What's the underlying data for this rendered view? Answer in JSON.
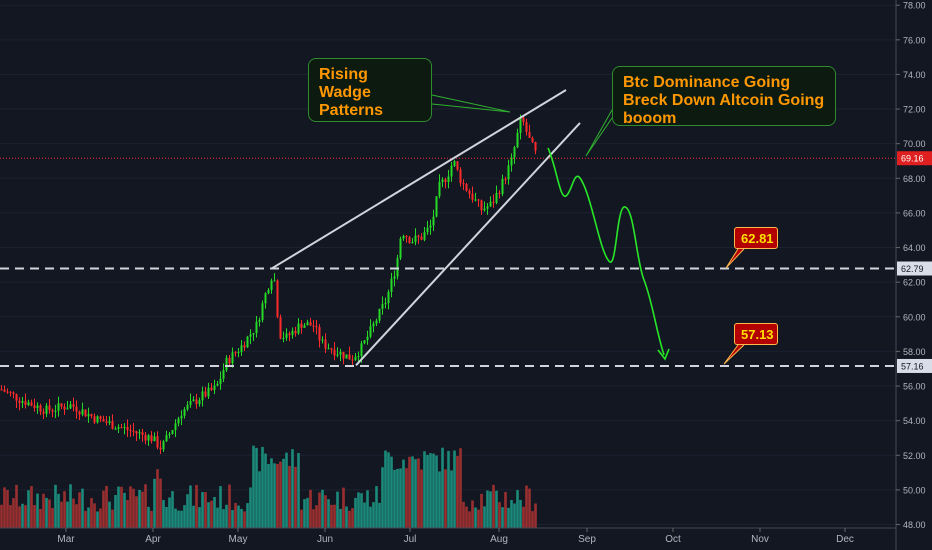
{
  "chart_data": {
    "type": "candlestick",
    "title": "",
    "y_axis": {
      "ticks": [
        "78.00",
        "76.00",
        "74.00",
        "72.00",
        "70.00",
        "68.00",
        "66.00",
        "64.00",
        "62.00",
        "60.00",
        "58.00",
        "56.00",
        "54.00",
        "52.00",
        "50.00",
        "48.00"
      ],
      "range": [
        47.8,
        78.3
      ],
      "position": "right"
    },
    "x_axis": {
      "ticks": [
        "Mar",
        "Apr",
        "May",
        "Jun",
        "Jul",
        "Aug",
        "Sep",
        "Oct",
        "Nov",
        "Dec"
      ]
    },
    "current_price": "69.16",
    "price_labels": [
      "62.79",
      "57.16"
    ],
    "levels": [
      62.79,
      57.16
    ],
    "callouts": [
      "62.81",
      "57.13"
    ],
    "annotations": {
      "wedge": "Rising Wadge Patterns",
      "forecast": "Btc Dominance Going Breck Down Altcoin Going booom"
    },
    "series_ohlc_sample": [
      {
        "date": "Feb",
        "close": 55.8
      },
      {
        "date": "Mar",
        "close": 54.6
      },
      {
        "date": "Apr",
        "close": 52.8
      },
      {
        "date": "May",
        "close": 57.0
      },
      {
        "date": "mid-May",
        "close": 62.8
      },
      {
        "date": "Jun",
        "close": 58.2
      },
      {
        "date": "mid-Jun",
        "close": 57.2
      },
      {
        "date": "Jul",
        "close": 62.6
      },
      {
        "date": "mid-Jul",
        "close": 68.9
      },
      {
        "date": "late-Jul",
        "close": 66.0
      },
      {
        "date": "Aug",
        "close": 69.2
      },
      {
        "date": "mid-Aug",
        "close": 71.5
      },
      {
        "date": "mid-Aug",
        "close": 69.16
      }
    ],
    "forecast_path": [
      {
        "date": "mid-Aug",
        "value": 69.5
      },
      {
        "date": "late-Aug",
        "value": 67.0
      },
      {
        "date": "Sep",
        "value": 68.3
      },
      {
        "date": "mid-Sep",
        "value": 63.0
      },
      {
        "date": "mid-Sep",
        "value": 66.5
      },
      {
        "date": "Oct",
        "value": 57.5
      }
    ],
    "colors": {
      "up": "#26d926",
      "down": "#ff2b2b",
      "vol_up": "#1b8a7a",
      "vol_down": "#9a2f2f",
      "forecast": "#28e628",
      "price_line": "#ff2b2b"
    }
  }
}
